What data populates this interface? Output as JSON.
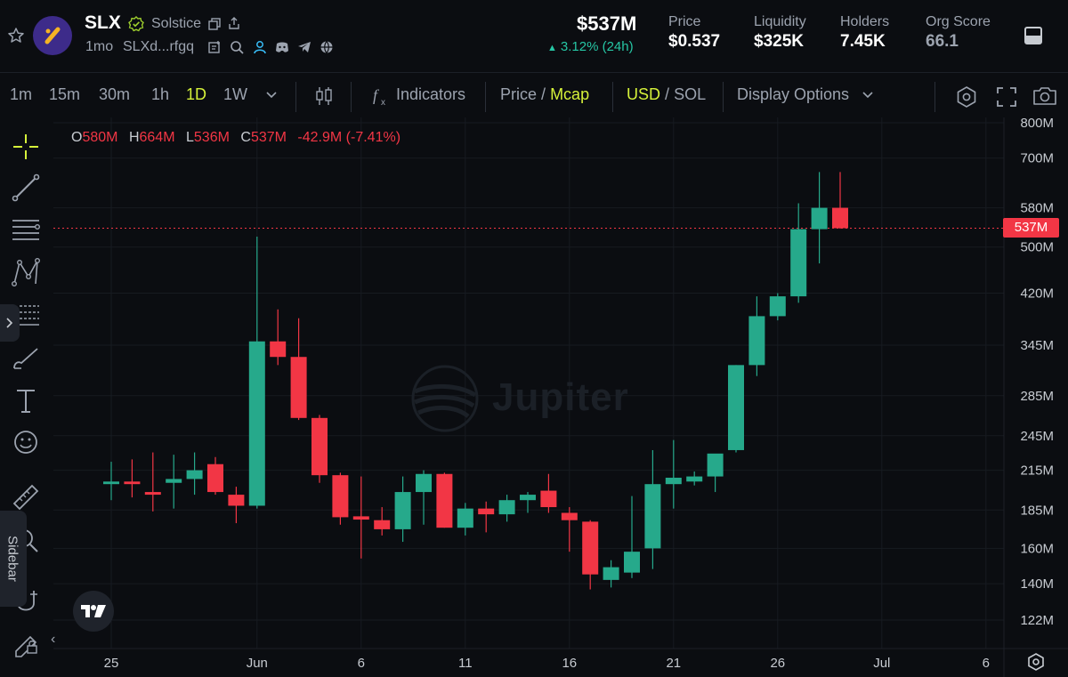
{
  "token": {
    "symbol": "SLX",
    "name": "Solstice",
    "age": "1mo",
    "address": "SLXd...rfgq",
    "market_cap": "$537M",
    "change_24h": "3.12% (24h)"
  },
  "stats": [
    {
      "label": "Price",
      "value": "$0.537"
    },
    {
      "label": "Liquidity",
      "value": "$325K"
    },
    {
      "label": "Holders",
      "value": "7.45K"
    },
    {
      "label": "Org Score",
      "value": "66.1"
    }
  ],
  "toolbar": {
    "intervals": [
      "1m",
      "15m",
      "30m",
      "1h",
      "1D",
      "1W"
    ],
    "active_interval": "1D",
    "indicators_label": "Indicators",
    "price_label": "Price",
    "mcap_label": "Mcap",
    "slash": "/",
    "usd_label": "USD",
    "sol_label": "SOL",
    "display_options_label": "Display Options"
  },
  "ohlc": {
    "o_key": "O",
    "o": "580M",
    "h_key": "H",
    "h": "664M",
    "l_key": "L",
    "l": "536M",
    "c_key": "C",
    "c": "537M",
    "change": "-42.9M (-7.41%)"
  },
  "sidebar_label": "Sidebar",
  "watermark": "Jupiter",
  "current_price_tag": "537M",
  "colors": {
    "up": "#26a98b",
    "down": "#f23645",
    "accent": "#d6f23a",
    "background": "#0b0d11"
  },
  "chart_data": {
    "type": "candlestick",
    "y_scale": "log",
    "ylim": [
      116,
      800
    ],
    "y_tick_labels": [
      "800M",
      "700M",
      "580M",
      "500M",
      "420M",
      "345M",
      "285M",
      "245M",
      "215M",
      "185M",
      "160M",
      "140M",
      "122M"
    ],
    "y_tick_values": [
      800,
      700,
      580,
      500,
      420,
      345,
      285,
      245,
      215,
      185,
      160,
      140,
      122
    ],
    "x_tick_labels": [
      "25",
      "Jun",
      "6",
      "11",
      "16",
      "21",
      "26",
      "Jul",
      "6"
    ],
    "x_tick_day_index": [
      0,
      7,
      12,
      17,
      22,
      27,
      32,
      37,
      42
    ],
    "unit": "M",
    "candles": [
      {
        "o": 204,
        "h": 222,
        "l": 192,
        "c": 206
      },
      {
        "o": 206,
        "h": 224,
        "l": 194,
        "c": 204
      },
      {
        "o": 198,
        "h": 230,
        "l": 184,
        "c": 196
      },
      {
        "o": 205,
        "h": 228,
        "l": 186,
        "c": 208
      },
      {
        "o": 208,
        "h": 230,
        "l": 196,
        "c": 215
      },
      {
        "o": 220,
        "h": 226,
        "l": 196,
        "c": 198
      },
      {
        "o": 196,
        "h": 202,
        "l": 176,
        "c": 188
      },
      {
        "o": 188,
        "h": 520,
        "l": 186,
        "c": 350
      },
      {
        "o": 350,
        "h": 395,
        "l": 320,
        "c": 330
      },
      {
        "o": 330,
        "h": 382,
        "l": 260,
        "c": 262
      },
      {
        "o": 262,
        "h": 265,
        "l": 205,
        "c": 211
      },
      {
        "o": 211,
        "h": 213,
        "l": 175,
        "c": 180
      },
      {
        "o": 180,
        "h": 210,
        "l": 154,
        "c": 179
      },
      {
        "o": 178,
        "h": 187,
        "l": 168,
        "c": 172
      },
      {
        "o": 172,
        "h": 210,
        "l": 164,
        "c": 198
      },
      {
        "o": 198,
        "h": 215,
        "l": 175,
        "c": 212
      },
      {
        "o": 212,
        "h": 213,
        "l": 173,
        "c": 173
      },
      {
        "o": 173,
        "h": 190,
        "l": 168,
        "c": 186
      },
      {
        "o": 186,
        "h": 191,
        "l": 170,
        "c": 182
      },
      {
        "o": 182,
        "h": 196,
        "l": 177,
        "c": 192
      },
      {
        "o": 192,
        "h": 198,
        "l": 183,
        "c": 196
      },
      {
        "o": 199,
        "h": 212,
        "l": 183,
        "c": 187
      },
      {
        "o": 183,
        "h": 187,
        "l": 158,
        "c": 178
      },
      {
        "o": 177,
        "h": 178,
        "l": 137,
        "c": 145
      },
      {
        "o": 142,
        "h": 153,
        "l": 138,
        "c": 149
      },
      {
        "o": 146,
        "h": 195,
        "l": 143,
        "c": 158
      },
      {
        "o": 160,
        "h": 232,
        "l": 148,
        "c": 204
      },
      {
        "o": 204,
        "h": 241,
        "l": 186,
        "c": 209
      },
      {
        "o": 206,
        "h": 214,
        "l": 203,
        "c": 210
      },
      {
        "o": 210,
        "h": 228,
        "l": 198,
        "c": 229
      },
      {
        "o": 232,
        "h": 320,
        "l": 230,
        "c": 320
      },
      {
        "o": 320,
        "h": 415,
        "l": 307,
        "c": 385
      },
      {
        "o": 385,
        "h": 420,
        "l": 379,
        "c": 415
      },
      {
        "o": 415,
        "h": 590,
        "l": 405,
        "c": 535
      },
      {
        "o": 535,
        "h": 664,
        "l": 470,
        "c": 580
      },
      {
        "o": 580,
        "h": 664,
        "l": 536,
        "c": 537
      }
    ]
  }
}
